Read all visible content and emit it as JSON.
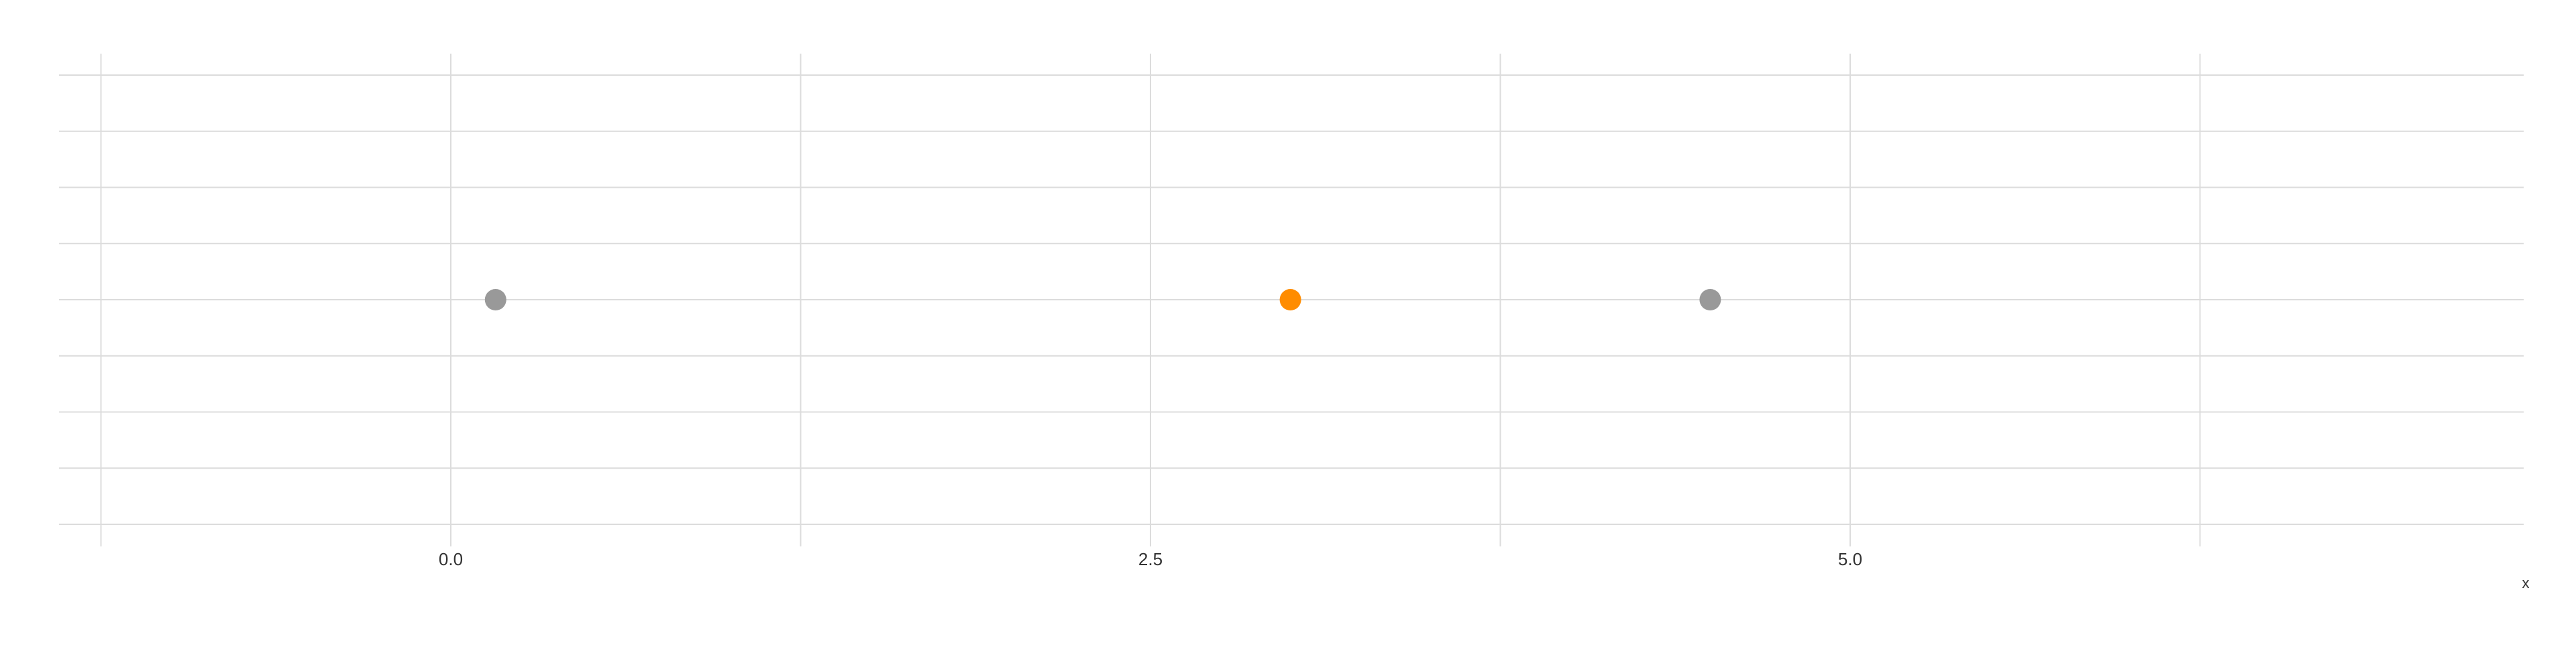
{
  "chart_data": {
    "type": "scatter",
    "title": "",
    "xlabel": "x",
    "ylabel": "",
    "xlim": [
      -1.25,
      7.5
    ],
    "x_ticks": [
      0.0,
      2.5,
      5.0
    ],
    "x_tick_labels": [
      "0.0",
      "2.5",
      "5.0"
    ],
    "x_minor_ticks": [
      -1.25,
      1.25,
      3.75,
      6.25
    ],
    "y_gridline_count": 9,
    "grid": true,
    "legend": "none",
    "points": [
      {
        "x": 0.16,
        "y": 0,
        "highlighted": false
      },
      {
        "x": 3.0,
        "y": 0,
        "highlighted": true
      },
      {
        "x": 4.5,
        "y": 0,
        "highlighted": false
      }
    ]
  },
  "colors": {
    "point_default": "#999999",
    "point_highlight": "#ff8c00",
    "grid": "#dcdcdc",
    "text": "#333333"
  }
}
